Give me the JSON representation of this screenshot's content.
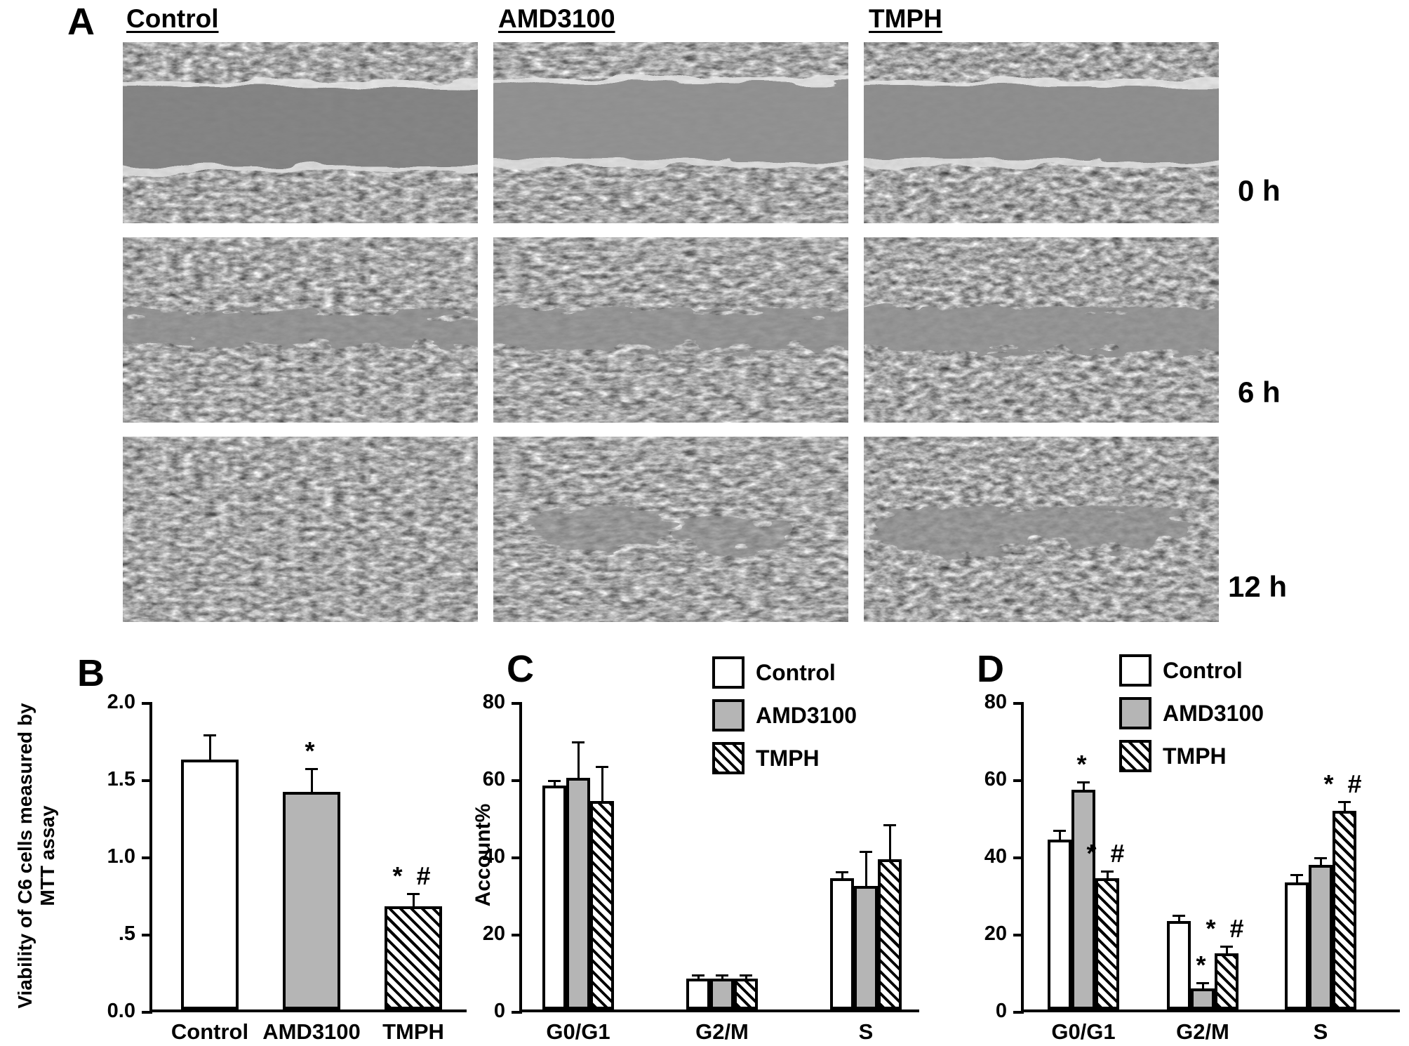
{
  "panels": {
    "a": "A",
    "b": "B",
    "c": "C",
    "d": "D"
  },
  "panelA": {
    "column_labels": [
      "Control",
      "AMD3100",
      "TMPH"
    ],
    "time_labels": [
      "0 h",
      "6 h",
      "12 h"
    ]
  },
  "colors": {
    "bar_gray": "#b5b5b5",
    "axis_black": "#000000",
    "micrograph_gray": "#9a9a9a"
  },
  "chart_data": [
    {
      "id": "B",
      "type": "bar",
      "title": "",
      "ylabel": "Viability of C6 cells measured by MTT assay",
      "xlabel": "",
      "ylim": [
        0,
        2.0
      ],
      "yticks": [
        0,
        0.5,
        1.0,
        1.5,
        2.0
      ],
      "ytick_labels": [
        "0.0",
        ".5",
        "1.0",
        "1.5",
        "2.0"
      ],
      "categories": [
        "Control",
        "AMD3100",
        "TMPH"
      ],
      "bar_styles": [
        "white",
        "gray",
        "hatch"
      ],
      "values": [
        1.62,
        1.41,
        0.67
      ],
      "errors": [
        0.15,
        0.14,
        0.07
      ],
      "annotations": [
        "",
        "*",
        "* #"
      ],
      "grid": false,
      "legend_position": "none"
    },
    {
      "id": "C",
      "type": "grouped-bar",
      "title": "",
      "ylabel": "Account%",
      "xlabel": "",
      "ylim": [
        0,
        80
      ],
      "yticks": [
        0,
        20,
        40,
        60,
        80
      ],
      "ytick_labels": [
        "0",
        "20",
        "40",
        "60",
        "80"
      ],
      "categories": [
        "G0/G1",
        "G2/M",
        "S"
      ],
      "legend": [
        "Control",
        "AMD3100",
        "TMPH"
      ],
      "legend_position": "top-right",
      "series": [
        {
          "name": "Control",
          "style": "white",
          "values": [
            58,
            8,
            34
          ],
          "errors": [
            1,
            0.6,
            1.2
          ],
          "annotations": [
            "",
            "",
            ""
          ]
        },
        {
          "name": "AMD3100",
          "style": "gray",
          "values": [
            60,
            8,
            32
          ],
          "errors": [
            9,
            0.6,
            8.5
          ],
          "annotations": [
            "",
            "",
            ""
          ]
        },
        {
          "name": "TMPH",
          "style": "hatch",
          "values": [
            54,
            8,
            39
          ],
          "errors": [
            8.5,
            0.6,
            8.5
          ],
          "annotations": [
            "",
            "",
            ""
          ]
        }
      ],
      "grid": false
    },
    {
      "id": "D",
      "type": "grouped-bar",
      "title": "",
      "ylabel": "",
      "xlabel": "",
      "ylim": [
        0,
        80
      ],
      "yticks": [
        0,
        20,
        40,
        60,
        80
      ],
      "ytick_labels": [
        "0",
        "20",
        "40",
        "60",
        "80"
      ],
      "categories": [
        "G0/G1",
        "G2/M",
        "S"
      ],
      "legend": [
        "Control",
        "AMD3100",
        "TMPH"
      ],
      "legend_position": "top-right",
      "series": [
        {
          "name": "Control",
          "style": "white",
          "values": [
            44,
            23,
            33
          ],
          "errors": [
            2,
            1,
            1.5
          ],
          "annotations": [
            "",
            "",
            ""
          ]
        },
        {
          "name": "AMD3100",
          "style": "gray",
          "values": [
            57,
            5.5,
            37.5
          ],
          "errors": [
            1.5,
            1,
            1.5
          ],
          "annotations": [
            "*",
            "*",
            ""
          ]
        },
        {
          "name": "TMPH",
          "style": "hatch",
          "values": [
            34,
            14.5,
            51.5
          ],
          "errors": [
            1.5,
            1.5,
            2
          ],
          "annotations": [
            "* #",
            "* #",
            "* #"
          ]
        }
      ],
      "grid": false
    }
  ]
}
